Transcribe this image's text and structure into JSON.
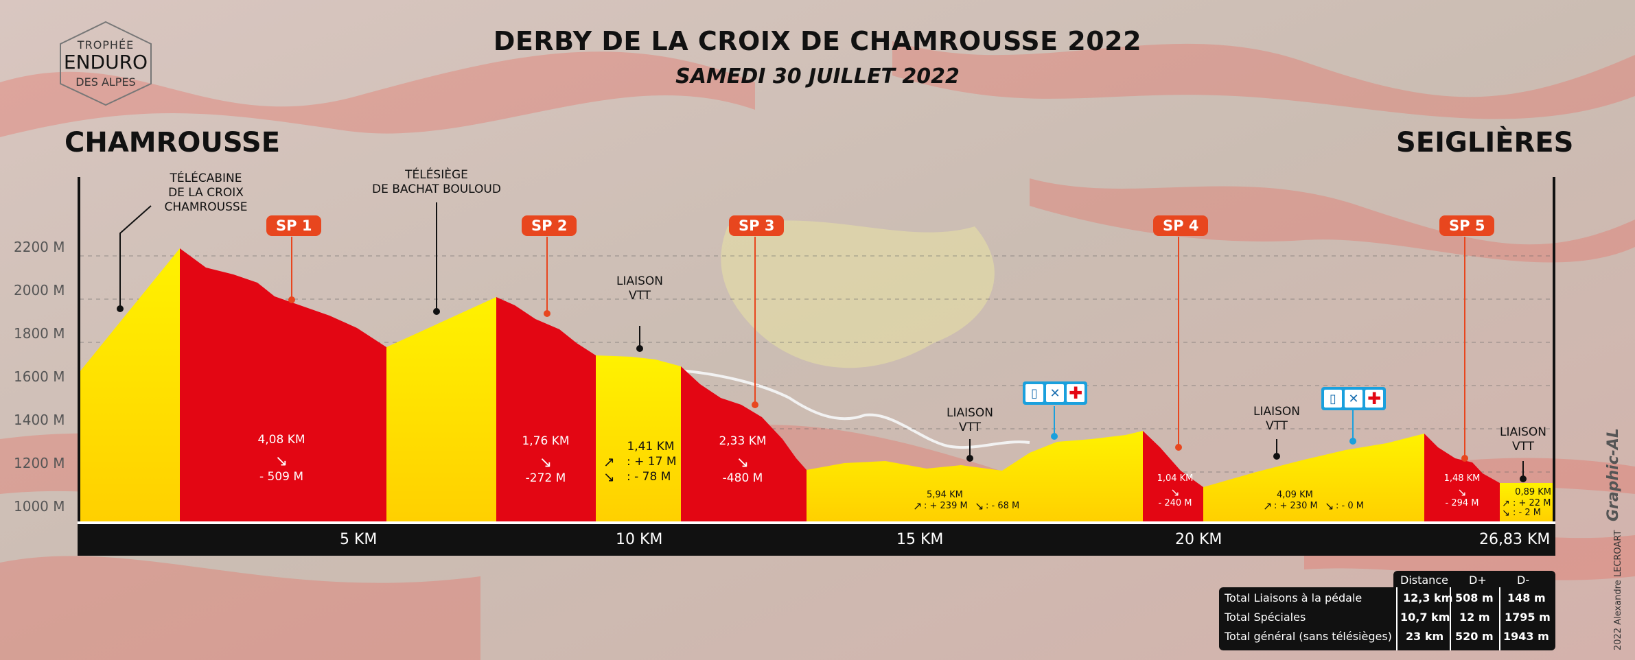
{
  "title": "DERBY DE LA CROIX DE CHAMROUSSE 2022",
  "subtitle": "SAMEDI 30 JUILLET 2022",
  "logo": {
    "line1": "TROPHÉE",
    "line2": "ENDURO",
    "line3": "DES ALPES"
  },
  "start_place": "CHAMROUSSE",
  "end_place": "SEIGLIÈRES",
  "lifts": [
    {
      "lines": [
        "TÉLÉCABINE",
        "DE LA CROIX",
        "CHAMROUSSE"
      ]
    },
    {
      "lines": [
        "TÉLÉSIÈGE",
        "DE BACHAT BOULOUD"
      ]
    }
  ],
  "liaison_labels": [
    {
      "lines": [
        "LIAISON",
        "VTT"
      ]
    },
    {
      "lines": [
        "LIAISON",
        "VTT"
      ]
    },
    {
      "lines": [
        "LIAISON",
        "VTT"
      ]
    },
    {
      "lines": [
        "LIAISON",
        "VTT"
      ]
    }
  ],
  "specials": [
    "SP 1",
    "SP 2",
    "SP 3",
    "SP 4",
    "SP 5"
  ],
  "y_labels": [
    "2200 M",
    "2000 M",
    "1800 M",
    "1600 M",
    "1400 M",
    "1200 M",
    "1000 M"
  ],
  "x_labels": [
    "5 KM",
    "10 KM",
    "15 KM",
    "20 KM",
    "26,83 KM"
  ],
  "segments": [
    {
      "dist": "4,08 KM",
      "arrow": "↘",
      "drop": "- 509 M"
    },
    {
      "dist": "1,76 KM",
      "arrow": "↘",
      "drop": "-272 M"
    },
    {
      "dist": "1,41 KM",
      "up_arrow": "↗",
      "down_arrow": "↘",
      "gain": ": + 17 M",
      "drop": ": - 78 M"
    },
    {
      "dist": "2,33 KM",
      "arrow": "↘",
      "drop": "-480 M"
    },
    {
      "dist": "5,94 KM",
      "up_arrow": "↗",
      "down_arrow": "↘",
      "gain": ": + 239 M",
      "drop": ": - 68 M"
    },
    {
      "dist": "1,04 KM",
      "arrow": "↘",
      "drop": "- 240 M"
    },
    {
      "dist": "4,09 KM",
      "up_arrow": "↗",
      "down_arrow": "↘",
      "gain": ": + 230 M",
      "drop": ": - 0 M"
    },
    {
      "dist": "1,48 KM",
      "arrow": "↘",
      "drop": "- 294 M"
    },
    {
      "dist": "0,89 KM",
      "up_arrow": "↗",
      "down_arrow": "↘",
      "gain": ": + 22 M",
      "drop": ": - 2 M"
    }
  ],
  "aid_station_icons": [
    "water-bottle-icon",
    "tools-icon",
    "first-aid-cross-icon"
  ],
  "totals": {
    "headers": [
      "Distance",
      "D+",
      "D-"
    ],
    "rows": [
      {
        "label": "Total Liaisons à la pédale",
        "distance": "12,3 km",
        "gain": "508 m",
        "loss": "148 m"
      },
      {
        "label": "Total Spéciales",
        "distance": "10,7 km",
        "gain": "12 m",
        "loss": "1795 m"
      },
      {
        "label": "Total général (sans télésièges)",
        "distance": "23 km",
        "gain": "520 m",
        "loss": "1943 m"
      }
    ]
  },
  "credit_brand": "Graphic-AL",
  "credit_author": "2022 Alexandre LECROART",
  "colors": {
    "special": "#e30613",
    "liaison": "#ffe000",
    "badge": "#e8461e",
    "icons": "#1aa0dd"
  }
}
